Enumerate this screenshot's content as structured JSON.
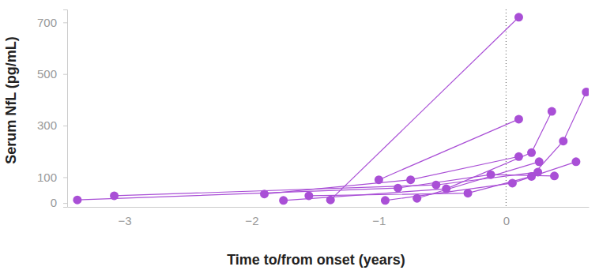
{
  "chart_data": {
    "type": "line",
    "x_label": "Time to/from onset (years)",
    "y_label": "Serum NfL (pg/mL)",
    "color": "#a94fd6",
    "marker": "circle",
    "line_style": "solid",
    "grid": false,
    "xlim": [
      -3.45,
      0.65
    ],
    "xticks": [
      {
        "value": -3,
        "label": "−3"
      },
      {
        "value": -2,
        "label": "−2"
      },
      {
        "value": -1,
        "label": "−1"
      },
      0
    ],
    "ylim": [
      -15,
      750
    ],
    "yticks": [
      0,
      100,
      300,
      500,
      700
    ],
    "reference_line": {
      "x": 0,
      "line_style": "dotted"
    },
    "series": [
      {
        "x": [
          -3.37,
          -0.85,
          -0.12,
          0.38
        ],
        "values": [
          12,
          58,
          110,
          105
        ]
      },
      {
        "x": [
          -3.08,
          -0.55,
          0.25
        ],
        "values": [
          28,
          70,
          120
        ]
      },
      {
        "x": [
          -1.9,
          -0.75,
          0.1
        ],
        "values": [
          35,
          90,
          180
        ]
      },
      {
        "x": [
          -1.75,
          -0.47,
          0.2,
          0.36
        ],
        "values": [
          10,
          55,
          195,
          355
        ]
      },
      {
        "x": [
          -1.55,
          -0.3,
          0.2,
          0.45,
          0.63
        ],
        "values": [
          28,
          38,
          103,
          240,
          430
        ]
      },
      {
        "x": [
          -1.38,
          0.1
        ],
        "values": [
          12,
          720
        ]
      },
      {
        "x": [
          -1.0,
          0.1
        ],
        "values": [
          90,
          325
        ]
      },
      {
        "x": [
          -0.95,
          0.05,
          0.55
        ],
        "values": [
          10,
          77,
          160
        ]
      },
      {
        "x": [
          -0.7,
          0.26
        ],
        "values": [
          18,
          160
        ]
      }
    ]
  }
}
